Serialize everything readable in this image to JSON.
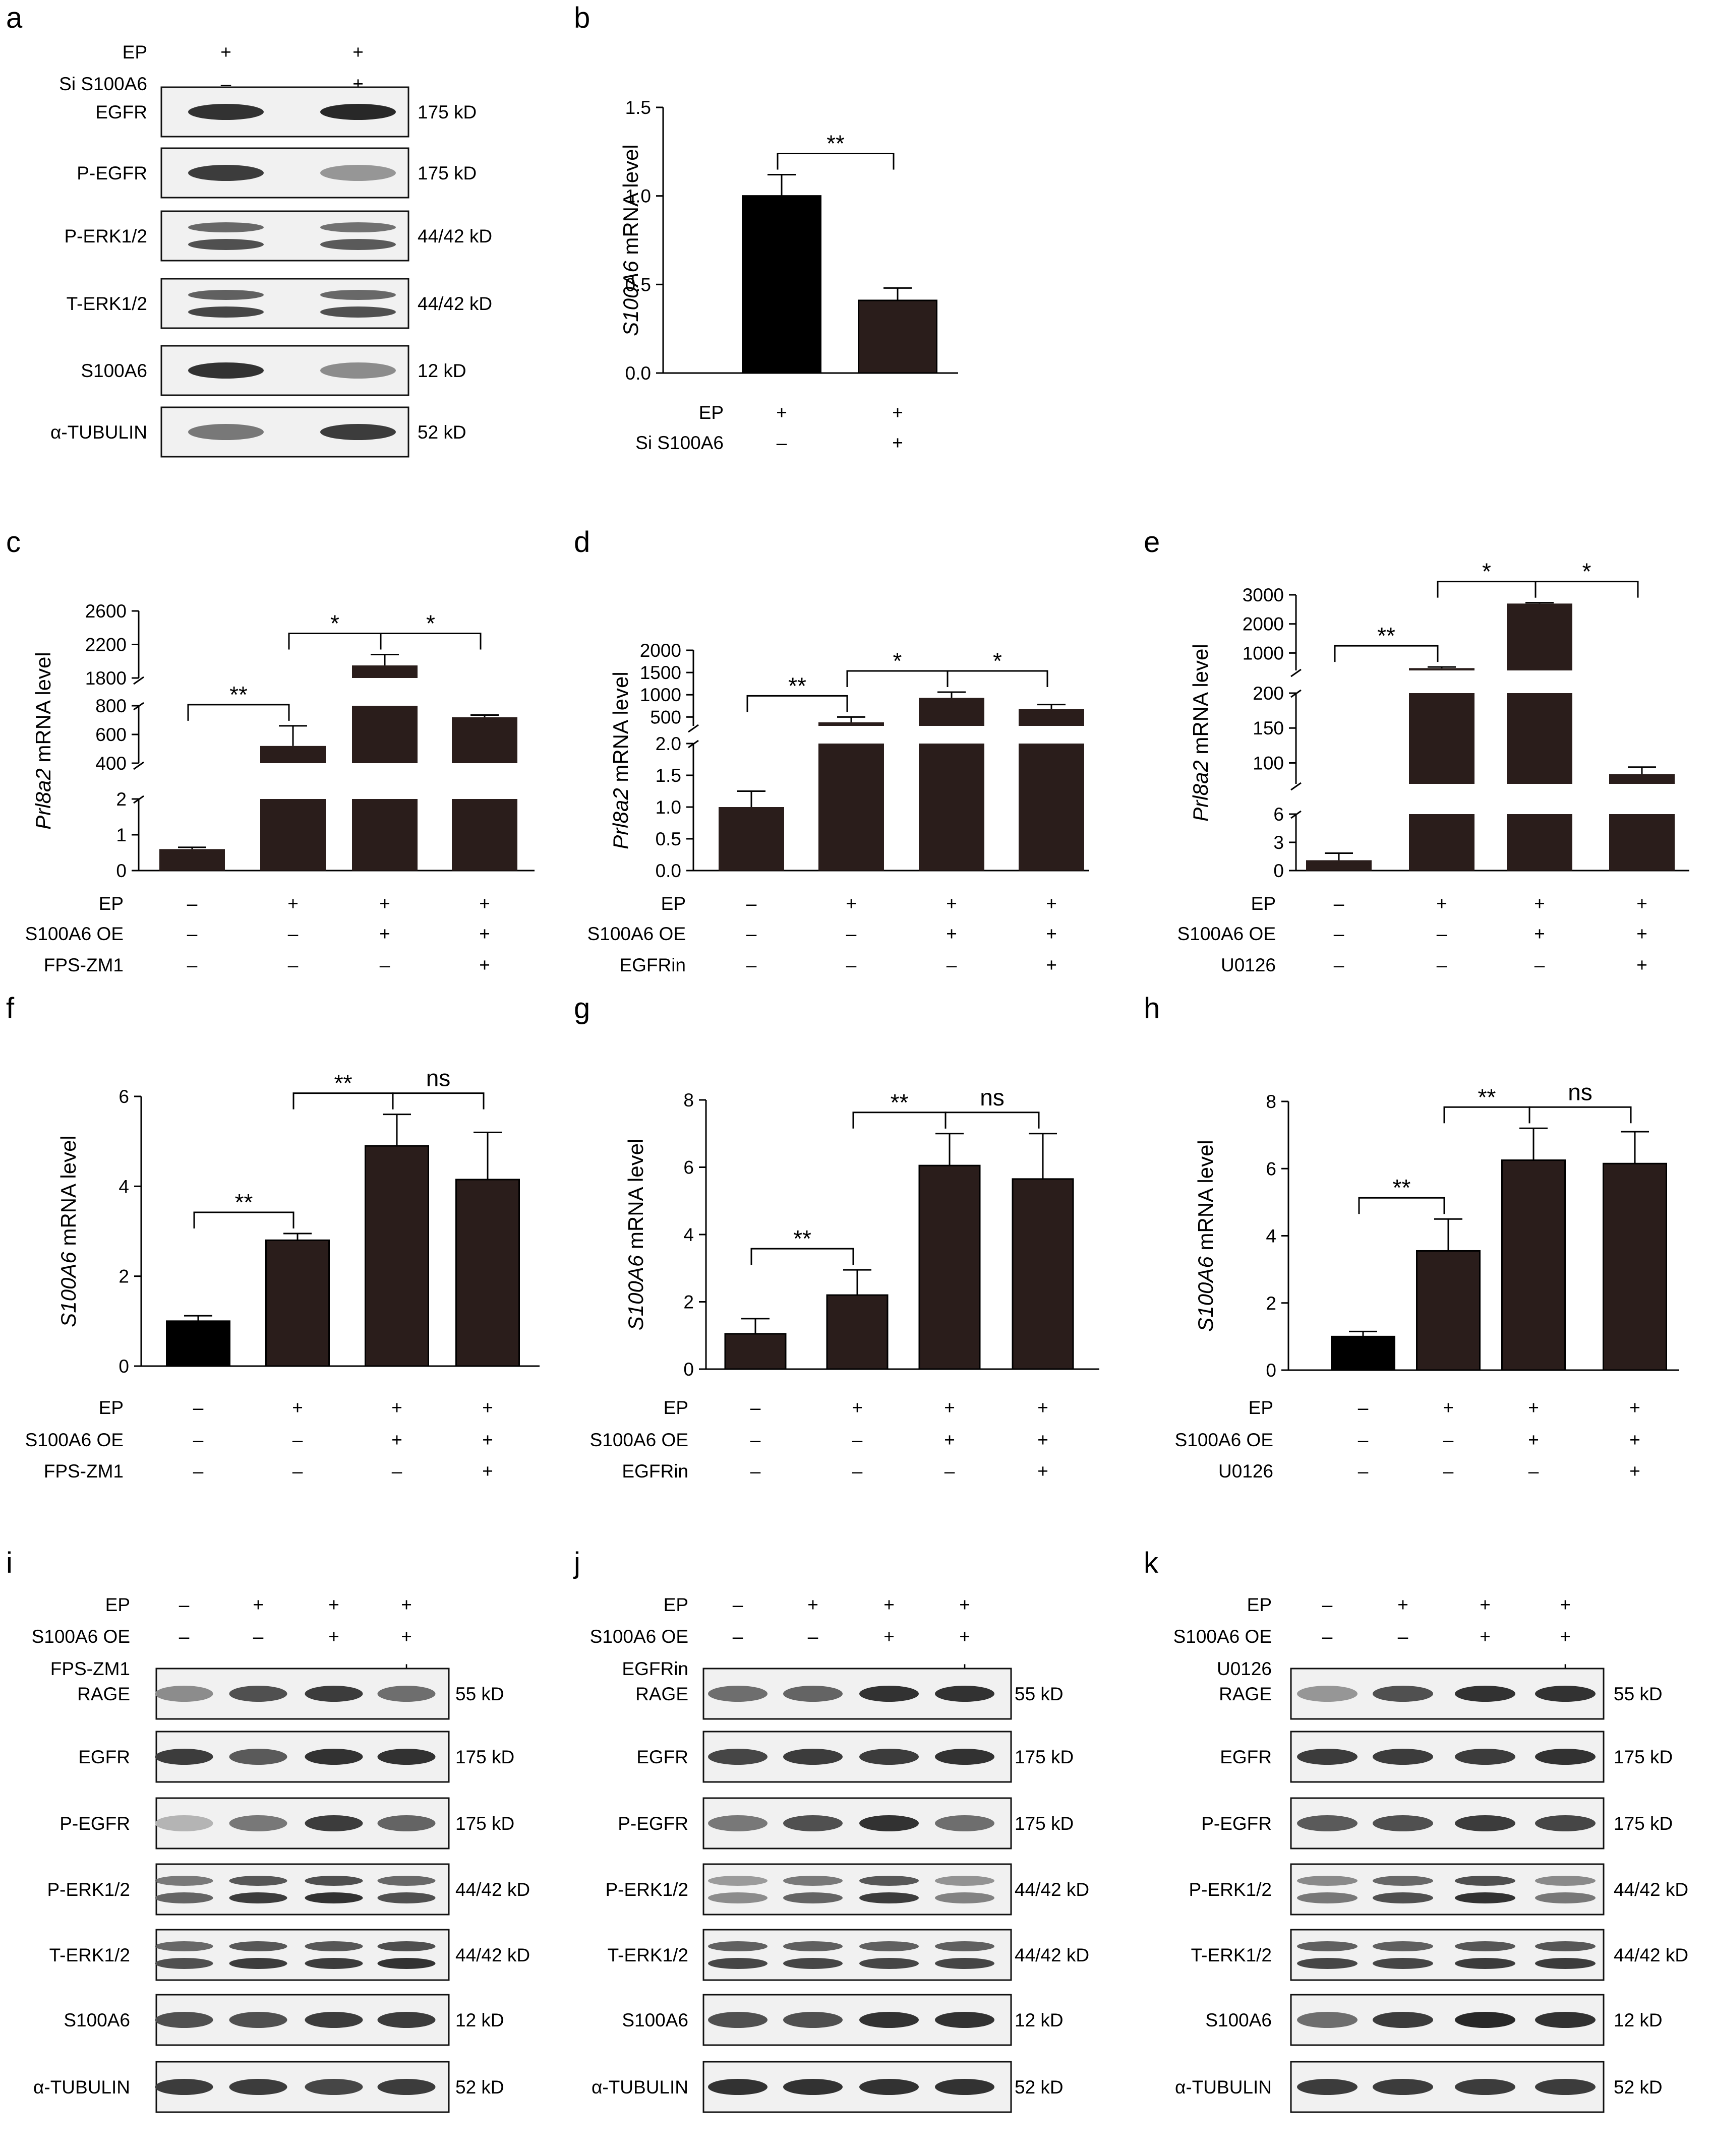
{
  "chart_data": [
    {
      "panel": "a",
      "type": "western_blot",
      "conditions": [
        {
          "label": "EP",
          "values": [
            "+",
            "+"
          ]
        },
        {
          "label": "Si S100A6",
          "values": [
            "–",
            "+"
          ]
        }
      ],
      "rows": [
        {
          "name": "EGFR",
          "size": "175 kD",
          "bands": [
            0.85,
            0.9
          ],
          "double": false
        },
        {
          "name": "P-EGFR",
          "size": "175 kD",
          "bands": [
            0.8,
            0.35
          ],
          "double": false
        },
        {
          "name": "P-ERK1/2",
          "size": "44/42 kD",
          "bands": [
            0.7,
            0.65
          ],
          "double": true
        },
        {
          "name": "T-ERK1/2",
          "size": "44/42 kD",
          "bands": [
            0.75,
            0.7
          ],
          "double": true
        },
        {
          "name": "S100A6",
          "size": "12 kD",
          "bands": [
            0.85,
            0.4
          ],
          "double": false
        },
        {
          "name": "α-TUBULIN",
          "size": "52 kD",
          "bands": [
            0.5,
            0.8
          ],
          "double": false
        }
      ]
    },
    {
      "panel": "b",
      "type": "bar",
      "ylabel_italic": "S100A6",
      "ylabel_rest": " mRNA level",
      "ylim": [
        0,
        1.5
      ],
      "yticks": [
        "0.0",
        "0.5",
        "1.0",
        "1.5"
      ],
      "values": [
        1.0,
        0.41
      ],
      "errors": [
        0.12,
        0.07
      ],
      "colors": [
        "#000000",
        "#2a1d1b"
      ],
      "conditions": [
        {
          "label": "EP",
          "values": [
            "+",
            "+"
          ]
        },
        {
          "label": "Si S100A6",
          "values": [
            "–",
            "+"
          ]
        }
      ],
      "significance": [
        {
          "from": 0,
          "to": 1,
          "label": "**"
        }
      ]
    },
    {
      "panel": "c",
      "type": "bar",
      "broken_axis": true,
      "ylabel_italic": "Prl8a2",
      "ylabel_rest": " mRNA level",
      "segments": [
        {
          "range": [
            0,
            2
          ],
          "ticks": [
            "0",
            "1",
            "2"
          ]
        },
        {
          "range": [
            400,
            800
          ],
          "ticks": [
            "400",
            "600",
            "800"
          ]
        },
        {
          "range": [
            1800,
            2600
          ],
          "ticks": [
            "1800",
            "2200",
            "2600"
          ]
        }
      ],
      "values": [
        0.6,
        520,
        1950,
        720
      ],
      "errors": [
        0.05,
        140,
        130,
        15
      ],
      "conditions": [
        {
          "label": "EP",
          "values": [
            "–",
            "+",
            "+",
            "+"
          ]
        },
        {
          "label": "S100A6 OE",
          "values": [
            "–",
            "–",
            "+",
            "+"
          ]
        },
        {
          "label": "FPS-ZM1",
          "values": [
            "–",
            "–",
            "–",
            "+"
          ]
        }
      ],
      "significance": [
        {
          "from": 0,
          "to": 1,
          "label": "**"
        },
        {
          "from": 1,
          "to": 2,
          "label": "*"
        },
        {
          "from": 2,
          "to": 3,
          "label": "*"
        }
      ]
    },
    {
      "panel": "d",
      "type": "bar",
      "broken_axis": true,
      "ylabel_italic": "Prl8a2",
      "ylabel_rest": " mRNA level",
      "segments": [
        {
          "range": [
            0,
            2
          ],
          "ticks": [
            "0.0",
            "0.5",
            "1.0",
            "1.5",
            "2.0"
          ]
        },
        {
          "range": [
            300,
            2000
          ],
          "ticks": [
            "500",
            "1000",
            "1500",
            "2000"
          ]
        }
      ],
      "values": [
        1.0,
        380,
        930,
        680
      ],
      "errors": [
        0.25,
        120,
        130,
        100
      ],
      "conditions": [
        {
          "label": "EP",
          "values": [
            "–",
            "+",
            "+",
            "+"
          ]
        },
        {
          "label": "S100A6 OE",
          "values": [
            "–",
            "–",
            "+",
            "+"
          ]
        },
        {
          "label": "EGFRin",
          "values": [
            "–",
            "–",
            "–",
            "+"
          ]
        }
      ],
      "significance": [
        {
          "from": 0,
          "to": 1,
          "label": "**"
        },
        {
          "from": 1,
          "to": 2,
          "label": "*"
        },
        {
          "from": 2,
          "to": 3,
          "label": "*"
        }
      ]
    },
    {
      "panel": "e",
      "type": "bar",
      "broken_axis": true,
      "ylabel_italic": "Prl8a2",
      "ylabel_rest": " mRNA level",
      "segments": [
        {
          "range": [
            0,
            6
          ],
          "ticks": [
            "0",
            "3",
            "6"
          ]
        },
        {
          "range": [
            70,
            200
          ],
          "ticks": [
            "100",
            "150",
            "200"
          ]
        },
        {
          "range": [
            400,
            3000
          ],
          "ticks": [
            "1000",
            "2000",
            "3000"
          ]
        }
      ],
      "values": [
        1.1,
        480,
        2700,
        84
      ],
      "errors": [
        0.75,
        40,
        30,
        10
      ],
      "conditions": [
        {
          "label": "EP",
          "values": [
            "–",
            "+",
            "+",
            "+"
          ]
        },
        {
          "label": "S100A6 OE",
          "values": [
            "–",
            "–",
            "+",
            "+"
          ]
        },
        {
          "label": "U0126",
          "values": [
            "–",
            "–",
            "–",
            "+"
          ]
        }
      ],
      "significance": [
        {
          "from": 0,
          "to": 1,
          "label": "**"
        },
        {
          "from": 1,
          "to": 2,
          "label": "*"
        },
        {
          "from": 2,
          "to": 3,
          "label": "*"
        }
      ]
    },
    {
      "panel": "f",
      "type": "bar",
      "ylabel_italic": "S100A6",
      "ylabel_rest": " mRNA level",
      "ylim": [
        0,
        6
      ],
      "yticks": [
        "0",
        "2",
        "4",
        "6"
      ],
      "values": [
        1.0,
        2.8,
        4.9,
        4.15
      ],
      "errors": [
        0.12,
        0.15,
        0.7,
        1.05
      ],
      "colors": [
        "#000000",
        "#2a1d1b",
        "#2a1d1b",
        "#2a1d1b"
      ],
      "conditions": [
        {
          "label": "EP",
          "values": [
            "–",
            "+",
            "+",
            "+"
          ]
        },
        {
          "label": "S100A6 OE",
          "values": [
            "–",
            "–",
            "+",
            "+"
          ]
        },
        {
          "label": "FPS-ZM1",
          "values": [
            "–",
            "–",
            "–",
            "+"
          ]
        }
      ],
      "significance": [
        {
          "from": 0,
          "to": 1,
          "label": "**"
        },
        {
          "from": 1,
          "to": 2,
          "label": "**"
        },
        {
          "from": 2,
          "to": 3,
          "label": "ns"
        }
      ]
    },
    {
      "panel": "g",
      "type": "bar",
      "ylabel_italic": "S100A6",
      "ylabel_rest": " mRNA level",
      "ylim": [
        0,
        8
      ],
      "yticks": [
        "0",
        "2",
        "4",
        "6",
        "8"
      ],
      "values": [
        1.05,
        2.2,
        6.05,
        5.65
      ],
      "errors": [
        0.45,
        0.75,
        0.95,
        1.35
      ],
      "colors": [
        "#2a1d1b",
        "#2a1d1b",
        "#2a1d1b",
        "#2a1d1b"
      ],
      "conditions": [
        {
          "label": "EP",
          "values": [
            "–",
            "+",
            "+",
            "+"
          ]
        },
        {
          "label": "S100A6 OE",
          "values": [
            "–",
            "–",
            "+",
            "+"
          ]
        },
        {
          "label": "EGFRin",
          "values": [
            "–",
            "–",
            "–",
            "+"
          ]
        }
      ],
      "significance": [
        {
          "from": 0,
          "to": 1,
          "label": "**"
        },
        {
          "from": 1,
          "to": 2,
          "label": "**"
        },
        {
          "from": 2,
          "to": 3,
          "label": "ns"
        }
      ]
    },
    {
      "panel": "h",
      "type": "bar",
      "ylabel_italic": "S100A6",
      "ylabel_rest": " mRNA level",
      "ylim": [
        0,
        8
      ],
      "yticks": [
        "0",
        "2",
        "4",
        "6",
        "8"
      ],
      "values": [
        1.0,
        3.55,
        6.25,
        6.15
      ],
      "errors": [
        0.15,
        0.95,
        0.95,
        0.95
      ],
      "colors": [
        "#000000",
        "#2a1d1b",
        "#2a1d1b",
        "#2a1d1b"
      ],
      "conditions": [
        {
          "label": "EP",
          "values": [
            "–",
            "+",
            "+",
            "+"
          ]
        },
        {
          "label": "S100A6 OE",
          "values": [
            "–",
            "–",
            "+",
            "+"
          ]
        },
        {
          "label": "U0126",
          "values": [
            "–",
            "–",
            "–",
            "+"
          ]
        }
      ],
      "significance": [
        {
          "from": 0,
          "to": 1,
          "label": "**"
        },
        {
          "from": 1,
          "to": 2,
          "label": "**"
        },
        {
          "from": 2,
          "to": 3,
          "label": "ns"
        }
      ]
    },
    {
      "panel": "i",
      "type": "western_blot",
      "conditions": [
        {
          "label": "EP",
          "values": [
            "–",
            "+",
            "+",
            "+"
          ]
        },
        {
          "label": "S100A6 OE",
          "values": [
            "–",
            "–",
            "+",
            "+"
          ]
        },
        {
          "label": "FPS-ZM1",
          "values": [
            "–",
            "–",
            "–",
            "+"
          ]
        }
      ],
      "rows": [
        {
          "name": "RAGE",
          "size": "55 kD",
          "bands": [
            0.4,
            0.7,
            0.8,
            0.55
          ],
          "double": false
        },
        {
          "name": "EGFR",
          "size": "175 kD",
          "bands": [
            0.8,
            0.65,
            0.85,
            0.85
          ],
          "double": false
        },
        {
          "name": "P-EGFR",
          "size": "175 kD",
          "bands": [
            0.2,
            0.5,
            0.8,
            0.6
          ],
          "double": false
        },
        {
          "name": "P-ERK1/2",
          "size": "44/42 kD",
          "bands": [
            0.6,
            0.8,
            0.85,
            0.7
          ],
          "double": true
        },
        {
          "name": "T-ERK1/2",
          "size": "44/42 kD",
          "bands": [
            0.7,
            0.8,
            0.8,
            0.85
          ],
          "double": true
        },
        {
          "name": "S100A6",
          "size": "12 kD",
          "bands": [
            0.7,
            0.7,
            0.8,
            0.8
          ],
          "double": false
        },
        {
          "name": "α-TUBULIN",
          "size": "52 kD",
          "bands": [
            0.8,
            0.8,
            0.75,
            0.8
          ],
          "double": false
        }
      ]
    },
    {
      "panel": "j",
      "type": "western_blot",
      "conditions": [
        {
          "label": "EP",
          "values": [
            "–",
            "+",
            "+",
            "+"
          ]
        },
        {
          "label": "S100A6 OE",
          "values": [
            "–",
            "–",
            "+",
            "+"
          ]
        },
        {
          "label": "EGFRin",
          "values": [
            "–",
            "–",
            "–",
            "+"
          ]
        }
      ],
      "rows": [
        {
          "name": "RAGE",
          "size": "55 kD",
          "bands": [
            0.55,
            0.6,
            0.85,
            0.85
          ],
          "double": false
        },
        {
          "name": "EGFR",
          "size": "175 kD",
          "bands": [
            0.75,
            0.8,
            0.8,
            0.85
          ],
          "double": false
        },
        {
          "name": "P-EGFR",
          "size": "175 kD",
          "bands": [
            0.5,
            0.7,
            0.85,
            0.55
          ],
          "double": false
        },
        {
          "name": "P-ERK1/2",
          "size": "44/42 kD",
          "bands": [
            0.4,
            0.6,
            0.8,
            0.45
          ],
          "double": true
        },
        {
          "name": "T-ERK1/2",
          "size": "44/42 kD",
          "bands": [
            0.75,
            0.75,
            0.75,
            0.75
          ],
          "double": true
        },
        {
          "name": "S100A6",
          "size": "12 kD",
          "bands": [
            0.7,
            0.7,
            0.85,
            0.85
          ],
          "double": false
        },
        {
          "name": "α-TUBULIN",
          "size": "52 kD",
          "bands": [
            0.85,
            0.85,
            0.85,
            0.85
          ],
          "double": false
        }
      ]
    },
    {
      "panel": "k",
      "type": "western_blot",
      "conditions": [
        {
          "label": "EP",
          "values": [
            "–",
            "+",
            "+",
            "+"
          ]
        },
        {
          "label": "S100A6 OE",
          "values": [
            "–",
            "–",
            "+",
            "+"
          ]
        },
        {
          "label": "U0126",
          "values": [
            "–",
            "–",
            "–",
            "+"
          ]
        }
      ],
      "rows": [
        {
          "name": "RAGE",
          "size": "55 kD",
          "bands": [
            0.35,
            0.7,
            0.85,
            0.85
          ],
          "double": false
        },
        {
          "name": "EGFR",
          "size": "175 kD",
          "bands": [
            0.8,
            0.8,
            0.8,
            0.85
          ],
          "double": false
        },
        {
          "name": "P-EGFR",
          "size": "175 kD",
          "bands": [
            0.65,
            0.7,
            0.8,
            0.75
          ],
          "double": false
        },
        {
          "name": "P-ERK1/2",
          "size": "44/42 kD",
          "bands": [
            0.5,
            0.7,
            0.85,
            0.5
          ],
          "double": true
        },
        {
          "name": "T-ERK1/2",
          "size": "44/42 kD",
          "bands": [
            0.75,
            0.75,
            0.8,
            0.8
          ],
          "double": true
        },
        {
          "name": "S100A6",
          "size": "12 kD",
          "bands": [
            0.55,
            0.8,
            0.9,
            0.85
          ],
          "double": false
        },
        {
          "name": "α-TUBULIN",
          "size": "52 kD",
          "bands": [
            0.8,
            0.8,
            0.8,
            0.8
          ],
          "double": false
        }
      ]
    }
  ]
}
